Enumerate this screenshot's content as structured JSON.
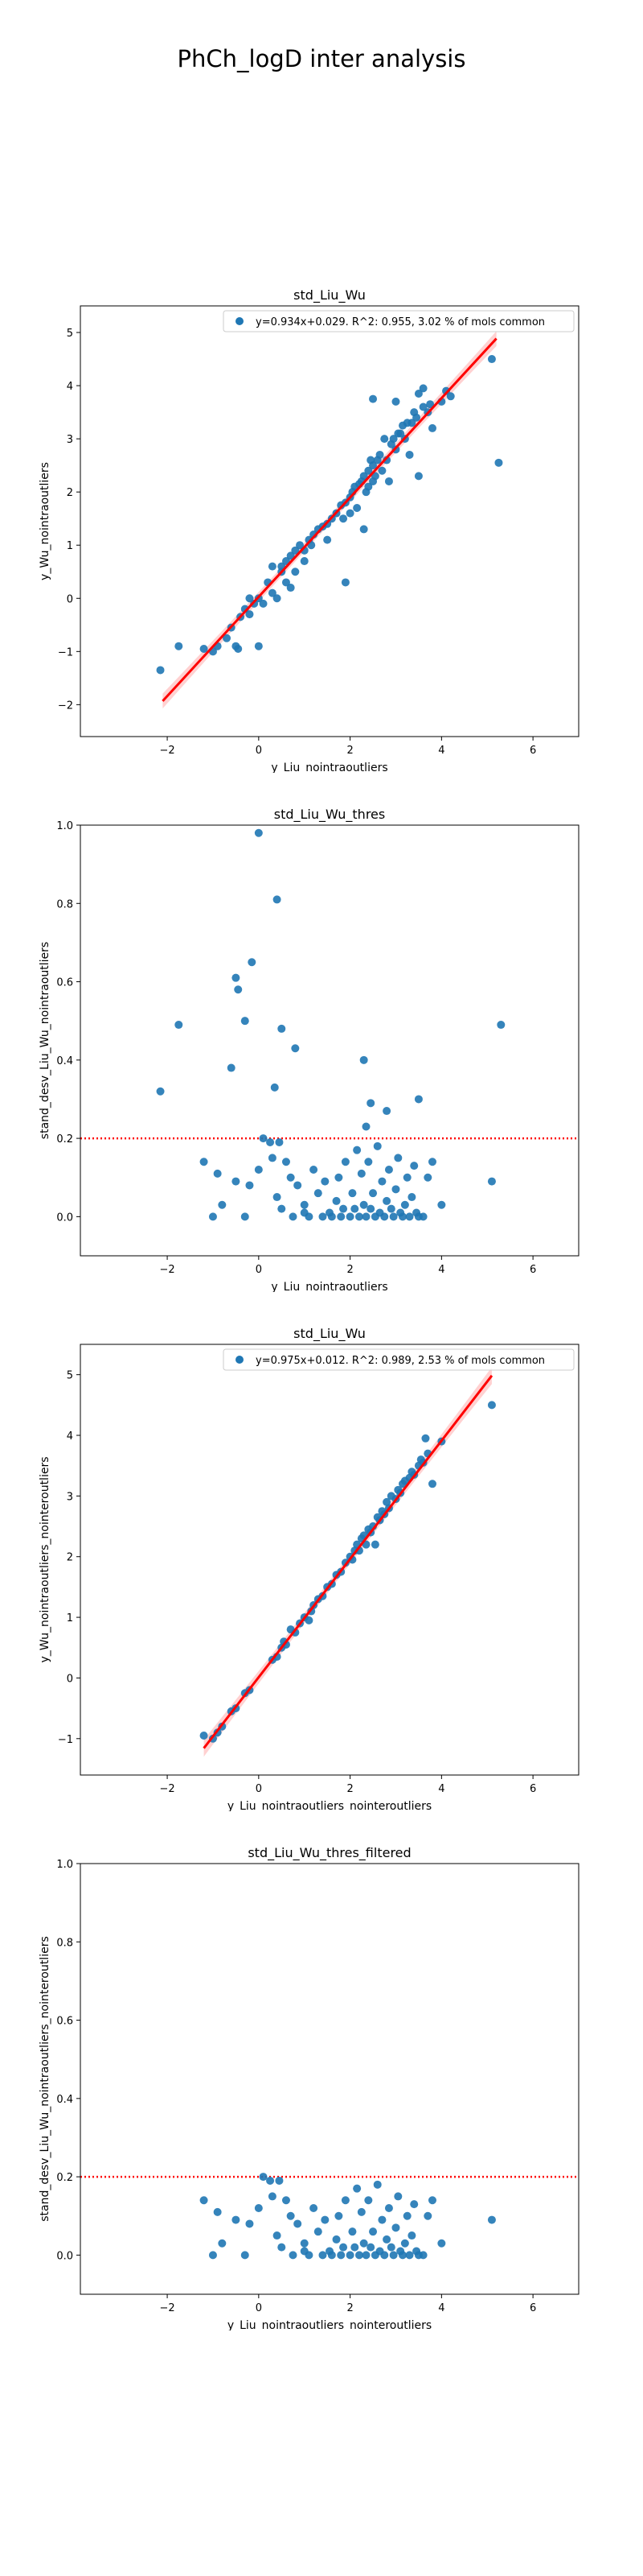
{
  "figure_title": "PhCh_logD inter analysis",
  "colors": {
    "points": "#1f77b4",
    "regression_line": "#ff0000",
    "confidence_band": "#ffb3b3",
    "threshold_line": "#ff0000"
  },
  "chart_data": [
    {
      "type": "scatter",
      "title": "std_Liu_Wu",
      "xlabel": "y_Liu_nointraoutliers",
      "ylabel": "y_Wu_nointraoutliers",
      "xlim": [
        -3.9,
        7.0
      ],
      "ylim": [
        -2.6,
        5.5
      ],
      "xticks": [
        -2,
        0,
        2,
        4,
        6
      ],
      "yticks": [
        -2,
        -1,
        0,
        1,
        2,
        3,
        4,
        5
      ],
      "legend": {
        "position": "top-right",
        "label": "y=0.934x+0.029. R^2: 0.955, 3.02 % of mols common"
      },
      "regression": {
        "slope": 0.934,
        "intercept": 0.029,
        "x_range": [
          -2.1,
          5.2
        ],
        "band": true
      },
      "points": [
        [
          -2.15,
          -1.35
        ],
        [
          -1.75,
          -0.9
        ],
        [
          -1.2,
          -0.95
        ],
        [
          -1.0,
          -1.0
        ],
        [
          -0.9,
          -0.9
        ],
        [
          -0.7,
          -0.75
        ],
        [
          -0.6,
          -0.55
        ],
        [
          -0.5,
          -0.9
        ],
        [
          -0.45,
          -0.95
        ],
        [
          -0.4,
          -0.35
        ],
        [
          -0.3,
          -0.2
        ],
        [
          -0.2,
          -0.3
        ],
        [
          -0.2,
          0.0
        ],
        [
          -0.1,
          -0.1
        ],
        [
          0.0,
          -0.9
        ],
        [
          0.0,
          0.0
        ],
        [
          0.1,
          -0.1
        ],
        [
          0.2,
          0.3
        ],
        [
          0.3,
          0.6
        ],
        [
          0.3,
          0.1
        ],
        [
          0.4,
          0.0
        ],
        [
          0.5,
          0.5
        ],
        [
          0.5,
          0.6
        ],
        [
          0.6,
          0.3
        ],
        [
          0.6,
          0.7
        ],
        [
          0.7,
          0.8
        ],
        [
          0.7,
          0.2
        ],
        [
          0.8,
          0.9
        ],
        [
          0.8,
          0.5
        ],
        [
          0.9,
          1.0
        ],
        [
          1.0,
          0.9
        ],
        [
          1.0,
          0.7
        ],
        [
          1.1,
          1.1
        ],
        [
          1.15,
          1.0
        ],
        [
          1.2,
          1.2
        ],
        [
          1.3,
          1.3
        ],
        [
          1.4,
          1.35
        ],
        [
          1.5,
          1.4
        ],
        [
          1.5,
          1.1
        ],
        [
          1.6,
          1.5
        ],
        [
          1.7,
          1.6
        ],
        [
          1.8,
          1.75
        ],
        [
          1.85,
          1.5
        ],
        [
          1.9,
          1.8
        ],
        [
          1.9,
          0.3
        ],
        [
          2.0,
          1.9
        ],
        [
          2.0,
          1.6
        ],
        [
          2.05,
          2.0
        ],
        [
          2.1,
          2.1
        ],
        [
          2.15,
          1.7
        ],
        [
          2.2,
          2.15
        ],
        [
          2.25,
          2.2
        ],
        [
          2.3,
          1.3
        ],
        [
          2.3,
          2.3
        ],
        [
          2.35,
          2.0
        ],
        [
          2.4,
          2.4
        ],
        [
          2.4,
          2.1
        ],
        [
          2.45,
          2.6
        ],
        [
          2.5,
          2.5
        ],
        [
          2.5,
          2.2
        ],
        [
          2.5,
          3.75
        ],
        [
          2.55,
          2.3
        ],
        [
          2.6,
          2.6
        ],
        [
          2.65,
          2.7
        ],
        [
          2.7,
          2.4
        ],
        [
          2.75,
          3.0
        ],
        [
          2.8,
          2.6
        ],
        [
          2.85,
          2.2
        ],
        [
          2.9,
          2.9
        ],
        [
          2.95,
          3.0
        ],
        [
          3.0,
          2.8
        ],
        [
          3.0,
          3.7
        ],
        [
          3.05,
          3.1
        ],
        [
          3.1,
          3.1
        ],
        [
          3.15,
          3.25
        ],
        [
          3.2,
          3.0
        ],
        [
          3.25,
          3.3
        ],
        [
          3.3,
          2.7
        ],
        [
          3.35,
          3.3
        ],
        [
          3.4,
          3.5
        ],
        [
          3.45,
          3.4
        ],
        [
          3.5,
          3.85
        ],
        [
          3.5,
          2.3
        ],
        [
          3.6,
          3.6
        ],
        [
          3.6,
          3.95
        ],
        [
          3.7,
          3.5
        ],
        [
          3.75,
          3.65
        ],
        [
          3.8,
          3.2
        ],
        [
          4.0,
          3.7
        ],
        [
          4.1,
          3.9
        ],
        [
          4.2,
          3.8
        ],
        [
          5.1,
          4.5
        ],
        [
          5.25,
          2.55
        ]
      ]
    },
    {
      "type": "scatter",
      "title": "std_Liu_Wu_thres",
      "xlabel": "y_Liu_nointraoutliers",
      "ylabel": "stand_desv_Liu_Wu_nointraoutliers",
      "xlim": [
        -3.9,
        7.0
      ],
      "ylim": [
        -0.1,
        1.0
      ],
      "xticks": [
        -2,
        0,
        2,
        4,
        6
      ],
      "yticks": [
        0.0,
        0.2,
        0.4,
        0.6,
        0.8,
        1.0
      ],
      "threshold": 0.2,
      "points": [
        [
          -2.15,
          0.32
        ],
        [
          -1.75,
          0.49
        ],
        [
          -1.2,
          0.14
        ],
        [
          -1.0,
          0.0
        ],
        [
          -0.9,
          0.11
        ],
        [
          -0.6,
          0.38
        ],
        [
          -0.5,
          0.61
        ],
        [
          -0.45,
          0.58
        ],
        [
          -0.3,
          0.5
        ],
        [
          0.0,
          0.98
        ],
        [
          -0.15,
          0.65
        ],
        [
          0.4,
          0.81
        ],
        [
          0.5,
          0.48
        ],
        [
          0.8,
          0.43
        ],
        [
          0.35,
          0.33
        ],
        [
          2.3,
          0.4
        ],
        [
          2.45,
          0.29
        ],
        [
          2.8,
          0.27
        ],
        [
          3.5,
          0.3
        ],
        [
          5.3,
          0.49
        ],
        [
          2.35,
          0.23
        ],
        [
          -0.8,
          0.03
        ],
        [
          -0.5,
          0.09
        ],
        [
          -0.3,
          0.0
        ],
        [
          -0.2,
          0.08
        ],
        [
          0.0,
          0.12
        ],
        [
          0.1,
          0.2
        ],
        [
          0.25,
          0.19
        ],
        [
          0.3,
          0.15
        ],
        [
          0.4,
          0.05
        ],
        [
          0.5,
          0.02
        ],
        [
          0.45,
          0.19
        ],
        [
          0.6,
          0.14
        ],
        [
          0.7,
          0.1
        ],
        [
          0.75,
          0.0
        ],
        [
          0.85,
          0.08
        ],
        [
          1.0,
          0.01
        ],
        [
          1.0,
          0.03
        ],
        [
          1.1,
          0.0
        ],
        [
          1.2,
          0.12
        ],
        [
          1.3,
          0.06
        ],
        [
          1.4,
          0.0
        ],
        [
          1.45,
          0.09
        ],
        [
          1.55,
          0.01
        ],
        [
          1.6,
          0.0
        ],
        [
          1.7,
          0.04
        ],
        [
          1.75,
          0.1
        ],
        [
          1.8,
          0.0
        ],
        [
          1.85,
          0.02
        ],
        [
          1.9,
          0.14
        ],
        [
          2.0,
          0.0
        ],
        [
          2.05,
          0.06
        ],
        [
          2.1,
          0.02
        ],
        [
          2.15,
          0.17
        ],
        [
          2.2,
          0.0
        ],
        [
          2.25,
          0.11
        ],
        [
          2.3,
          0.03
        ],
        [
          2.35,
          0.0
        ],
        [
          2.4,
          0.14
        ],
        [
          2.45,
          0.02
        ],
        [
          2.5,
          0.06
        ],
        [
          2.55,
          0.0
        ],
        [
          2.6,
          0.18
        ],
        [
          2.65,
          0.01
        ],
        [
          2.7,
          0.09
        ],
        [
          2.75,
          0.0
        ],
        [
          2.8,
          0.04
        ],
        [
          2.85,
          0.12
        ],
        [
          2.9,
          0.02
        ],
        [
          2.95,
          0.0
        ],
        [
          3.0,
          0.07
        ],
        [
          3.05,
          0.15
        ],
        [
          3.1,
          0.01
        ],
        [
          3.15,
          0.0
        ],
        [
          3.2,
          0.03
        ],
        [
          3.25,
          0.1
        ],
        [
          3.3,
          0.0
        ],
        [
          3.35,
          0.05
        ],
        [
          3.4,
          0.13
        ],
        [
          3.45,
          0.01
        ],
        [
          3.5,
          0.0
        ],
        [
          3.6,
          0.0
        ],
        [
          3.7,
          0.1
        ],
        [
          3.8,
          0.14
        ],
        [
          4.0,
          0.03
        ],
        [
          5.1,
          0.09
        ]
      ]
    },
    {
      "type": "scatter",
      "title": "std_Liu_Wu",
      "xlabel": "y_Liu_nointraoutliers_nointeroutliers",
      "ylabel": "y_Wu_nointraoutliers_nointeroutliers",
      "xlim": [
        -3.9,
        7.0
      ],
      "ylim": [
        -1.6,
        5.5
      ],
      "xticks": [
        -2,
        0,
        2,
        4,
        6
      ],
      "yticks": [
        -1,
        0,
        1,
        2,
        3,
        4,
        5
      ],
      "legend": {
        "position": "top-right",
        "label": "y=0.975x+0.012. R^2: 0.989, 2.53 % of mols common"
      },
      "regression": {
        "slope": 0.975,
        "intercept": 0.012,
        "x_range": [
          -1.2,
          5.1
        ],
        "band": true
      },
      "points": [
        [
          -1.2,
          -0.95
        ],
        [
          -1.0,
          -1.0
        ],
        [
          -0.9,
          -0.9
        ],
        [
          -0.8,
          -0.8
        ],
        [
          -0.6,
          -0.55
        ],
        [
          -0.5,
          -0.5
        ],
        [
          -0.3,
          -0.25
        ],
        [
          -0.2,
          -0.2
        ],
        [
          0.3,
          0.3
        ],
        [
          0.4,
          0.35
        ],
        [
          0.5,
          0.5
        ],
        [
          0.55,
          0.6
        ],
        [
          0.6,
          0.55
        ],
        [
          0.7,
          0.8
        ],
        [
          0.8,
          0.75
        ],
        [
          0.9,
          0.9
        ],
        [
          1.0,
          1.0
        ],
        [
          1.1,
          0.95
        ],
        [
          1.15,
          1.1
        ],
        [
          1.2,
          1.2
        ],
        [
          1.3,
          1.3
        ],
        [
          1.4,
          1.35
        ],
        [
          1.5,
          1.5
        ],
        [
          1.6,
          1.55
        ],
        [
          1.7,
          1.7
        ],
        [
          1.8,
          1.75
        ],
        [
          1.9,
          1.9
        ],
        [
          2.0,
          2.0
        ],
        [
          2.05,
          1.95
        ],
        [
          2.1,
          2.1
        ],
        [
          2.15,
          2.2
        ],
        [
          2.2,
          2.1
        ],
        [
          2.25,
          2.3
        ],
        [
          2.3,
          2.35
        ],
        [
          2.35,
          2.2
        ],
        [
          2.4,
          2.45
        ],
        [
          2.45,
          2.4
        ],
        [
          2.5,
          2.5
        ],
        [
          2.55,
          2.2
        ],
        [
          2.6,
          2.65
        ],
        [
          2.65,
          2.6
        ],
        [
          2.7,
          2.75
        ],
        [
          2.75,
          2.7
        ],
        [
          2.8,
          2.9
        ],
        [
          2.85,
          2.8
        ],
        [
          2.9,
          3.0
        ],
        [
          3.0,
          2.95
        ],
        [
          3.05,
          3.1
        ],
        [
          3.1,
          3.05
        ],
        [
          3.15,
          3.2
        ],
        [
          3.2,
          3.25
        ],
        [
          3.3,
          3.3
        ],
        [
          3.35,
          3.4
        ],
        [
          3.4,
          3.35
        ],
        [
          3.5,
          3.5
        ],
        [
          3.55,
          3.6
        ],
        [
          3.6,
          3.55
        ],
        [
          3.65,
          3.95
        ],
        [
          3.7,
          3.7
        ],
        [
          3.8,
          3.2
        ],
        [
          4.0,
          3.9
        ],
        [
          5.1,
          4.5
        ]
      ]
    },
    {
      "type": "scatter",
      "title": "std_Liu_Wu_thres_filtered",
      "xlabel": "y_Liu_nointraoutliers_nointeroutliers",
      "ylabel": "stand_desv_Liu_Wu_nointraoutliers_nointeroutliers",
      "xlim": [
        -3.9,
        7.0
      ],
      "ylim": [
        -0.1,
        1.0
      ],
      "xticks": [
        -2,
        0,
        2,
        4,
        6
      ],
      "yticks": [
        0.0,
        0.2,
        0.4,
        0.6,
        0.8,
        1.0
      ],
      "threshold": 0.2,
      "points": [
        [
          -1.2,
          0.14
        ],
        [
          -1.0,
          0.0
        ],
        [
          -0.9,
          0.11
        ],
        [
          -0.8,
          0.03
        ],
        [
          -0.5,
          0.09
        ],
        [
          -0.3,
          0.0
        ],
        [
          -0.2,
          0.08
        ],
        [
          0.0,
          0.12
        ],
        [
          0.1,
          0.2
        ],
        [
          0.25,
          0.19
        ],
        [
          0.3,
          0.15
        ],
        [
          0.4,
          0.05
        ],
        [
          0.5,
          0.02
        ],
        [
          0.45,
          0.19
        ],
        [
          0.6,
          0.14
        ],
        [
          0.7,
          0.1
        ],
        [
          0.75,
          0.0
        ],
        [
          0.85,
          0.08
        ],
        [
          1.0,
          0.01
        ],
        [
          1.0,
          0.03
        ],
        [
          1.1,
          0.0
        ],
        [
          1.2,
          0.12
        ],
        [
          1.3,
          0.06
        ],
        [
          1.4,
          0.0
        ],
        [
          1.45,
          0.09
        ],
        [
          1.55,
          0.01
        ],
        [
          1.6,
          0.0
        ],
        [
          1.7,
          0.04
        ],
        [
          1.75,
          0.1
        ],
        [
          1.8,
          0.0
        ],
        [
          1.85,
          0.02
        ],
        [
          1.9,
          0.14
        ],
        [
          2.0,
          0.0
        ],
        [
          2.05,
          0.06
        ],
        [
          2.1,
          0.02
        ],
        [
          2.15,
          0.17
        ],
        [
          2.2,
          0.0
        ],
        [
          2.25,
          0.11
        ],
        [
          2.3,
          0.03
        ],
        [
          2.35,
          0.0
        ],
        [
          2.4,
          0.14
        ],
        [
          2.45,
          0.02
        ],
        [
          2.5,
          0.06
        ],
        [
          2.55,
          0.0
        ],
        [
          2.6,
          0.18
        ],
        [
          2.65,
          0.01
        ],
        [
          2.7,
          0.09
        ],
        [
          2.75,
          0.0
        ],
        [
          2.8,
          0.04
        ],
        [
          2.85,
          0.12
        ],
        [
          2.9,
          0.02
        ],
        [
          2.95,
          0.0
        ],
        [
          3.0,
          0.07
        ],
        [
          3.05,
          0.15
        ],
        [
          3.1,
          0.01
        ],
        [
          3.15,
          0.0
        ],
        [
          3.2,
          0.03
        ],
        [
          3.25,
          0.1
        ],
        [
          3.3,
          0.0
        ],
        [
          3.35,
          0.05
        ],
        [
          3.4,
          0.13
        ],
        [
          3.45,
          0.01
        ],
        [
          3.5,
          0.0
        ],
        [
          3.6,
          0.0
        ],
        [
          3.7,
          0.1
        ],
        [
          3.8,
          0.14
        ],
        [
          4.0,
          0.03
        ],
        [
          5.1,
          0.09
        ]
      ]
    }
  ]
}
